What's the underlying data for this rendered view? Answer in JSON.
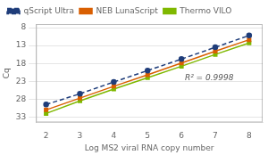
{
  "chart_data": {
    "type": "line",
    "xlabel": "Log MS2 viral RNA copy number",
    "ylabel": "Cq",
    "x": [
      2,
      3,
      4,
      5,
      6,
      7,
      8
    ],
    "series": [
      {
        "name": "qScript Ultra",
        "color": "#1f3d7a",
        "values": [
          29.5,
          26.5,
          23.2,
          20.0,
          16.8,
          13.5,
          10.2
        ],
        "marker": "circle",
        "line_style": "dashed"
      },
      {
        "name": "NEB LunaScript",
        "color": "#d95f02",
        "values": [
          31.0,
          27.7,
          24.4,
          21.2,
          17.9,
          14.6,
          11.4
        ],
        "marker": "square",
        "line_style": "solid"
      },
      {
        "name": "Thermo VILO",
        "color": "#7fb800",
        "values": [
          32.0,
          28.5,
          25.2,
          22.0,
          18.8,
          15.5,
          12.3
        ],
        "marker": "square",
        "line_style": "solid"
      }
    ],
    "annotations": [
      {
        "text": "R² = 0.9998",
        "x": 6.1,
        "y": 22.0
      }
    ],
    "xlim": [
      1.7,
      8.4
    ],
    "xticks": [
      2,
      3,
      4,
      5,
      6,
      7,
      8
    ],
    "ylim": [
      34.5,
      7.0
    ],
    "yticks": [
      8,
      13,
      18,
      23,
      28,
      33
    ],
    "grid": "y",
    "legend": "upper left"
  }
}
